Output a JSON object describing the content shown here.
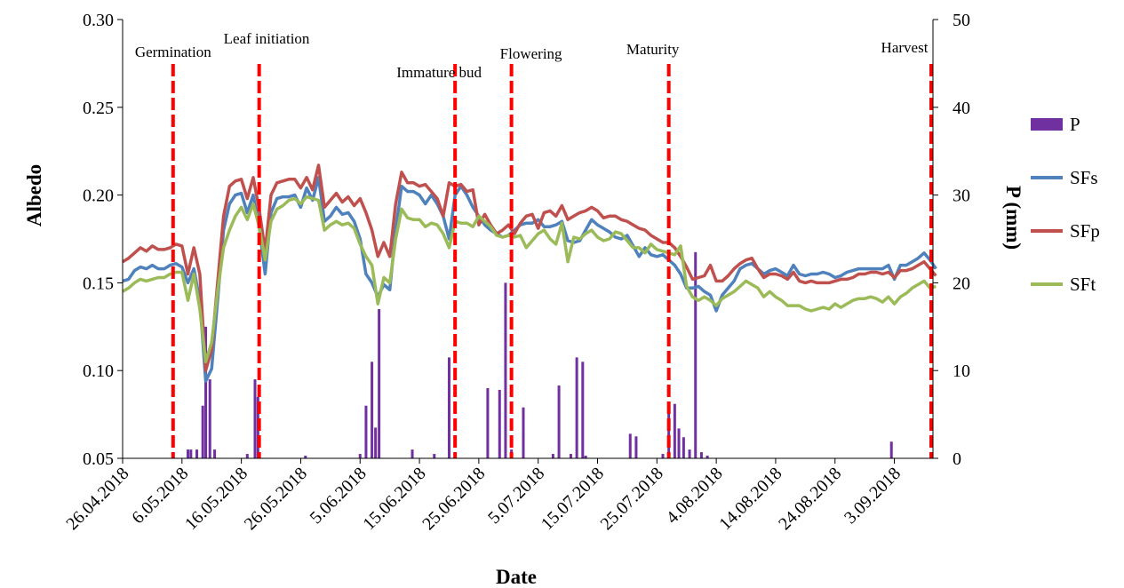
{
  "chart_data": {
    "type": "line",
    "xlabel": "Date",
    "ylabel": "Albedo",
    "y2label": "P (mm)",
    "ylim": [
      0.05,
      0.3
    ],
    "y2lim": [
      0,
      50
    ],
    "y_ticks": [
      "0.05",
      "0.10",
      "0.15",
      "0.20",
      "0.25",
      "0.30"
    ],
    "y2_ticks": [
      "0",
      "10",
      "20",
      "30",
      "40",
      "50"
    ],
    "x_ticks": [
      "26.04.2018",
      "6.05.2018",
      "16.05.2018",
      "26.05.2018",
      "5.06.2018",
      "15.06.2018",
      "25.06.2018",
      "5.07.2018",
      "15.07.2018",
      "25.07.2018",
      "4.08.2018",
      "14.08.2018",
      "24.08.2018",
      "3.09.2018"
    ],
    "x_tick_days": [
      0,
      10,
      20,
      30,
      40,
      50,
      60,
      70,
      80,
      90,
      100,
      110,
      120,
      130
    ],
    "x_range_days": [
      0,
      136.5
    ],
    "legend_position": "right",
    "stages": [
      {
        "label": "Germination",
        "day": 8.5
      },
      {
        "label": "Leaf initiation",
        "day": 23
      },
      {
        "label": "Immature  bud",
        "day": 56
      },
      {
        "label": "Flowering",
        "day": 65.5
      },
      {
        "label": "Maturity",
        "day": 92
      },
      {
        "label": "Harvest",
        "day": 136.2
      }
    ],
    "series": [
      {
        "name": "SFs",
        "color": "#4f81bd",
        "x": [
          0,
          1,
          2,
          3,
          4,
          5,
          6,
          7,
          8,
          9,
          10,
          11,
          12,
          13,
          14,
          15,
          16,
          17,
          18,
          19,
          20,
          21,
          22,
          23,
          24,
          25,
          26,
          27,
          28,
          29,
          30,
          31,
          32,
          33,
          34,
          35,
          36,
          37,
          38,
          39,
          40,
          41,
          42,
          43,
          44,
          45,
          46,
          47,
          48,
          49,
          50,
          51,
          52,
          53,
          54,
          55,
          56,
          57,
          58,
          59,
          60,
          61,
          62,
          63,
          64,
          65,
          66,
          67,
          68,
          69,
          70,
          71,
          72,
          73,
          74,
          75,
          76,
          77,
          78,
          79,
          80,
          81,
          82,
          83,
          84,
          85,
          86,
          87,
          88,
          89,
          90,
          91,
          92,
          93,
          94,
          95,
          96,
          97,
          98,
          99,
          100,
          101,
          102,
          103,
          104,
          105,
          106,
          107,
          108,
          109,
          110,
          111,
          112,
          113,
          114,
          115,
          116,
          117,
          118,
          119,
          120,
          121,
          122,
          123,
          124,
          125,
          126,
          127,
          128,
          129,
          130,
          131,
          132,
          133,
          134,
          135,
          136,
          137
        ],
        "values": [
          0.151,
          0.152,
          0.157,
          0.159,
          0.158,
          0.16,
          0.158,
          0.158,
          0.16,
          0.161,
          0.159,
          0.15,
          0.158,
          0.14,
          0.094,
          0.101,
          0.14,
          0.18,
          0.195,
          0.2,
          0.201,
          0.19,
          0.2,
          0.182,
          0.155,
          0.19,
          0.198,
          0.199,
          0.199,
          0.2,
          0.193,
          0.204,
          0.197,
          0.21,
          0.185,
          0.188,
          0.193,
          0.189,
          0.19,
          0.185,
          0.175,
          0.155,
          0.15,
          0.142,
          0.149,
          0.146,
          0.18,
          0.205,
          0.202,
          0.202,
          0.2,
          0.195,
          0.2,
          0.195,
          0.188,
          0.175,
          0.2,
          0.205,
          0.2,
          0.193,
          0.188,
          0.183,
          0.18,
          0.178,
          0.176,
          0.177,
          0.18,
          0.183,
          0.184,
          0.184,
          0.186,
          0.182,
          0.182,
          0.183,
          0.185,
          0.174,
          0.173,
          0.174,
          0.18,
          0.186,
          0.183,
          0.181,
          0.179,
          0.176,
          0.175,
          0.177,
          0.171,
          0.165,
          0.17,
          0.166,
          0.165,
          0.166,
          0.163,
          0.16,
          0.155,
          0.147,
          0.147,
          0.148,
          0.145,
          0.143,
          0.134,
          0.143,
          0.147,
          0.151,
          0.158,
          0.16,
          0.161,
          0.158,
          0.155,
          0.157,
          0.158,
          0.156,
          0.154,
          0.16,
          0.155,
          0.154,
          0.155,
          0.155,
          0.156,
          0.155,
          0.153,
          0.154,
          0.156,
          0.157,
          0.158,
          0.158,
          0.158,
          0.158,
          0.158,
          0.16,
          0.152,
          0.16,
          0.16,
          0.162,
          0.164,
          0.167,
          0.163,
          0.158
        ]
      },
      {
        "name": "SFp",
        "color": "#c0504d",
        "x": [
          0,
          1,
          2,
          3,
          4,
          5,
          6,
          7,
          8,
          9,
          10,
          11,
          12,
          13,
          14,
          15,
          16,
          17,
          18,
          19,
          20,
          21,
          22,
          23,
          24,
          25,
          26,
          27,
          28,
          29,
          30,
          31,
          32,
          33,
          34,
          35,
          36,
          37,
          38,
          39,
          40,
          41,
          42,
          43,
          44,
          45,
          46,
          47,
          48,
          49,
          50,
          51,
          52,
          53,
          54,
          55,
          56,
          57,
          58,
          59,
          60,
          61,
          62,
          63,
          64,
          65,
          66,
          67,
          68,
          69,
          70,
          71,
          72,
          73,
          74,
          75,
          76,
          77,
          78,
          79,
          80,
          81,
          82,
          83,
          84,
          85,
          86,
          87,
          88,
          89,
          90,
          91,
          92,
          93,
          94,
          95,
          96,
          97,
          98,
          99,
          100,
          101,
          102,
          103,
          104,
          105,
          106,
          107,
          108,
          109,
          110,
          111,
          112,
          113,
          114,
          115,
          116,
          117,
          118,
          119,
          120,
          121,
          122,
          123,
          124,
          125,
          126,
          127,
          128,
          129,
          130,
          131,
          132,
          133,
          134,
          135,
          136,
          137
        ],
        "values": [
          0.162,
          0.164,
          0.167,
          0.17,
          0.168,
          0.171,
          0.169,
          0.169,
          0.17,
          0.172,
          0.171,
          0.155,
          0.17,
          0.155,
          0.1,
          0.112,
          0.15,
          0.188,
          0.205,
          0.208,
          0.209,
          0.198,
          0.21,
          0.192,
          0.168,
          0.2,
          0.207,
          0.208,
          0.209,
          0.209,
          0.204,
          0.21,
          0.203,
          0.217,
          0.193,
          0.197,
          0.201,
          0.196,
          0.199,
          0.194,
          0.198,
          0.19,
          0.18,
          0.165,
          0.173,
          0.165,
          0.195,
          0.213,
          0.207,
          0.207,
          0.205,
          0.206,
          0.202,
          0.198,
          0.188,
          0.207,
          0.205,
          0.206,
          0.202,
          0.203,
          0.183,
          0.189,
          0.183,
          0.178,
          0.18,
          0.183,
          0.178,
          0.184,
          0.188,
          0.189,
          0.181,
          0.19,
          0.191,
          0.188,
          0.194,
          0.186,
          0.188,
          0.19,
          0.191,
          0.193,
          0.191,
          0.187,
          0.188,
          0.188,
          0.186,
          0.185,
          0.183,
          0.181,
          0.18,
          0.177,
          0.175,
          0.173,
          0.173,
          0.17,
          0.165,
          0.159,
          0.152,
          0.153,
          0.154,
          0.16,
          0.151,
          0.151,
          0.154,
          0.158,
          0.161,
          0.163,
          0.164,
          0.158,
          0.153,
          0.155,
          0.155,
          0.154,
          0.152,
          0.156,
          0.151,
          0.15,
          0.151,
          0.15,
          0.15,
          0.15,
          0.151,
          0.152,
          0.152,
          0.153,
          0.155,
          0.155,
          0.156,
          0.156,
          0.155,
          0.156,
          0.153,
          0.157,
          0.157,
          0.158,
          0.16,
          0.162,
          0.158,
          0.154
        ]
      },
      {
        "name": "SFt",
        "color": "#9bbb59",
        "x": [
          0,
          1,
          2,
          3,
          4,
          5,
          6,
          7,
          8,
          9,
          10,
          11,
          12,
          13,
          14,
          15,
          16,
          17,
          18,
          19,
          20,
          21,
          22,
          23,
          24,
          25,
          26,
          27,
          28,
          29,
          30,
          31,
          32,
          33,
          34,
          35,
          36,
          37,
          38,
          39,
          40,
          41,
          42,
          43,
          44,
          45,
          46,
          47,
          48,
          49,
          50,
          51,
          52,
          53,
          54,
          55,
          56,
          57,
          58,
          59,
          60,
          61,
          62,
          63,
          64,
          65,
          66,
          67,
          68,
          69,
          70,
          71,
          72,
          73,
          74,
          75,
          76,
          77,
          78,
          79,
          80,
          81,
          82,
          83,
          84,
          85,
          86,
          87,
          88,
          89,
          90,
          91,
          92,
          93,
          94,
          95,
          96,
          97,
          98,
          99,
          100,
          101,
          102,
          103,
          104,
          105,
          106,
          107,
          108,
          109,
          110,
          111,
          112,
          113,
          114,
          115,
          116,
          117,
          118,
          119,
          120,
          121,
          122,
          123,
          124,
          125,
          126,
          127,
          128,
          129,
          130,
          131,
          132,
          133,
          134,
          135,
          136,
          137
        ],
        "values": [
          0.145,
          0.147,
          0.15,
          0.152,
          0.151,
          0.152,
          0.153,
          0.153,
          0.155,
          0.156,
          0.156,
          0.14,
          0.155,
          0.135,
          0.105,
          0.116,
          0.145,
          0.17,
          0.18,
          0.188,
          0.193,
          0.186,
          0.195,
          0.182,
          0.163,
          0.185,
          0.192,
          0.194,
          0.197,
          0.198,
          0.195,
          0.199,
          0.198,
          0.197,
          0.18,
          0.183,
          0.185,
          0.183,
          0.184,
          0.181,
          0.172,
          0.165,
          0.16,
          0.138,
          0.153,
          0.15,
          0.175,
          0.192,
          0.187,
          0.186,
          0.186,
          0.182,
          0.184,
          0.183,
          0.178,
          0.17,
          0.185,
          0.184,
          0.184,
          0.182,
          0.188,
          0.185,
          0.182,
          0.177,
          0.176,
          0.177,
          0.176,
          0.177,
          0.17,
          0.174,
          0.178,
          0.18,
          0.175,
          0.172,
          0.184,
          0.162,
          0.176,
          0.175,
          0.178,
          0.18,
          0.176,
          0.174,
          0.175,
          0.179,
          0.178,
          0.174,
          0.17,
          0.17,
          0.167,
          0.172,
          0.169,
          0.168,
          0.167,
          0.166,
          0.171,
          0.148,
          0.142,
          0.14,
          0.142,
          0.14,
          0.137,
          0.141,
          0.143,
          0.145,
          0.148,
          0.151,
          0.149,
          0.147,
          0.142,
          0.145,
          0.142,
          0.14,
          0.137,
          0.137,
          0.137,
          0.135,
          0.134,
          0.135,
          0.136,
          0.135,
          0.138,
          0.136,
          0.138,
          0.14,
          0.141,
          0.141,
          0.142,
          0.141,
          0.139,
          0.142,
          0.138,
          0.142,
          0.144,
          0.147,
          0.149,
          0.151,
          0.147,
          0.148
        ]
      }
    ],
    "bars": {
      "name": "P",
      "axis": "right",
      "color": "#7030a0",
      "x": [
        11,
        11.5,
        12.5,
        13.5,
        14,
        14.7,
        15.5,
        21,
        22.3,
        22.8,
        30.8,
        40,
        41,
        42,
        42.6,
        43.2,
        48.8,
        52.5,
        55,
        61.5,
        63.5,
        64.5,
        65.5,
        67.5,
        72.5,
        73.5,
        75.5,
        76.5,
        77.5,
        78,
        85.5,
        86.5,
        91,
        92,
        93,
        93.7,
        94.5,
        95.5,
        96.5,
        97.5,
        98.5,
        129.5
      ],
      "values": [
        1,
        1,
        1,
        6,
        15,
        9,
        1,
        0.5,
        9,
        7,
        0.3,
        0.5,
        6,
        11,
        3.5,
        17,
        1,
        0.5,
        11.5,
        8,
        7.8,
        20,
        1,
        5.8,
        0.5,
        8.3,
        0.5,
        11.5,
        11,
        0.3,
        2.8,
        2.5,
        0.5,
        5.5,
        6.2,
        3.4,
        2.4,
        1,
        23.5,
        0.7,
        0.3,
        1.9
      ]
    }
  }
}
